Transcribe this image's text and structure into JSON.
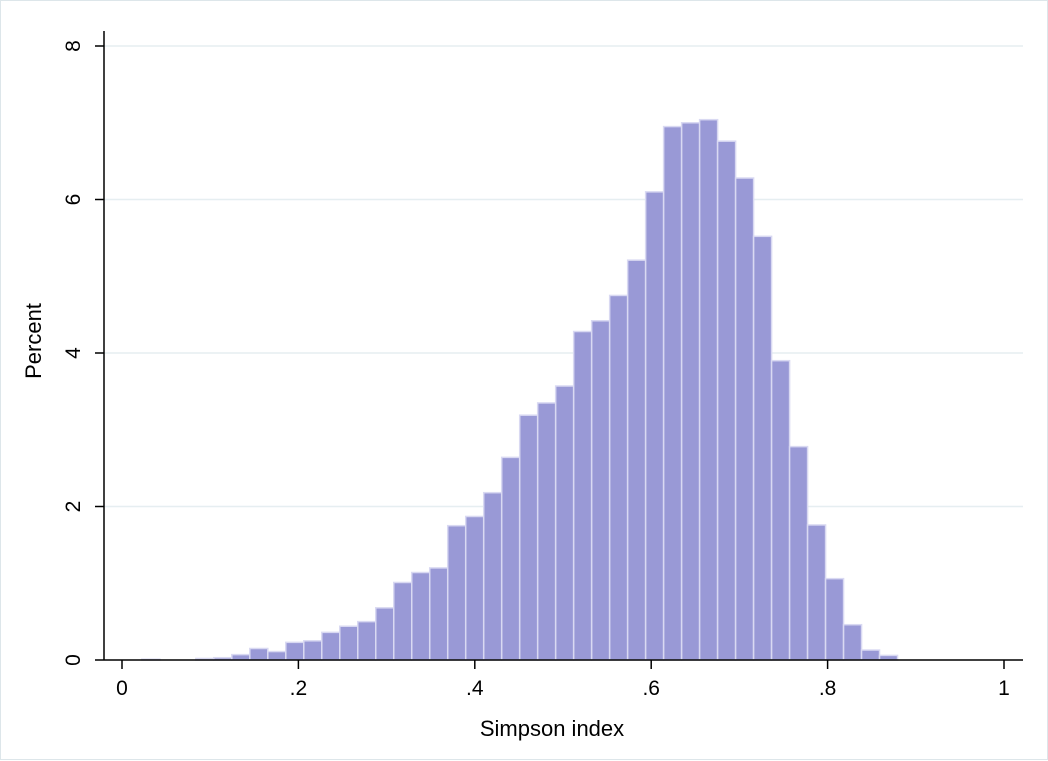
{
  "chart_data": {
    "type": "bar",
    "subtype": "histogram",
    "title": "",
    "xlabel": "Simpson index",
    "ylabel": "Percent",
    "xlim": [
      0,
      1
    ],
    "ylim": [
      0,
      8
    ],
    "x_ticks": [
      {
        "value": 0,
        "label": "0"
      },
      {
        "value": 0.2,
        "label": ".2"
      },
      {
        "value": 0.4,
        "label": ".4"
      },
      {
        "value": 0.6,
        "label": ".6"
      },
      {
        "value": 0.8,
        "label": ".8"
      },
      {
        "value": 1,
        "label": "1"
      }
    ],
    "y_ticks": [
      {
        "value": 0,
        "label": "0"
      },
      {
        "value": 2,
        "label": "2"
      },
      {
        "value": 4,
        "label": "4"
      },
      {
        "value": 6,
        "label": "6"
      },
      {
        "value": 8,
        "label": "8"
      }
    ],
    "grid": true,
    "bar_color": "#9999d6",
    "bar_edge_color": "#d9d9f2",
    "bin_start": 0.0225,
    "bin_width": 0.0204,
    "values": [
      0.01,
      0.0,
      0.0,
      0.02,
      0.03,
      0.07,
      0.15,
      0.11,
      0.23,
      0.25,
      0.36,
      0.44,
      0.5,
      0.68,
      1.01,
      1.14,
      1.2,
      1.75,
      1.87,
      2.18,
      2.64,
      3.19,
      3.35,
      3.57,
      4.28,
      4.42,
      4.75,
      5.21,
      6.1,
      6.95,
      7.0,
      7.04,
      6.76,
      6.28,
      5.52,
      3.9,
      2.78,
      1.76,
      1.06,
      0.46,
      0.13,
      0.06
    ]
  }
}
